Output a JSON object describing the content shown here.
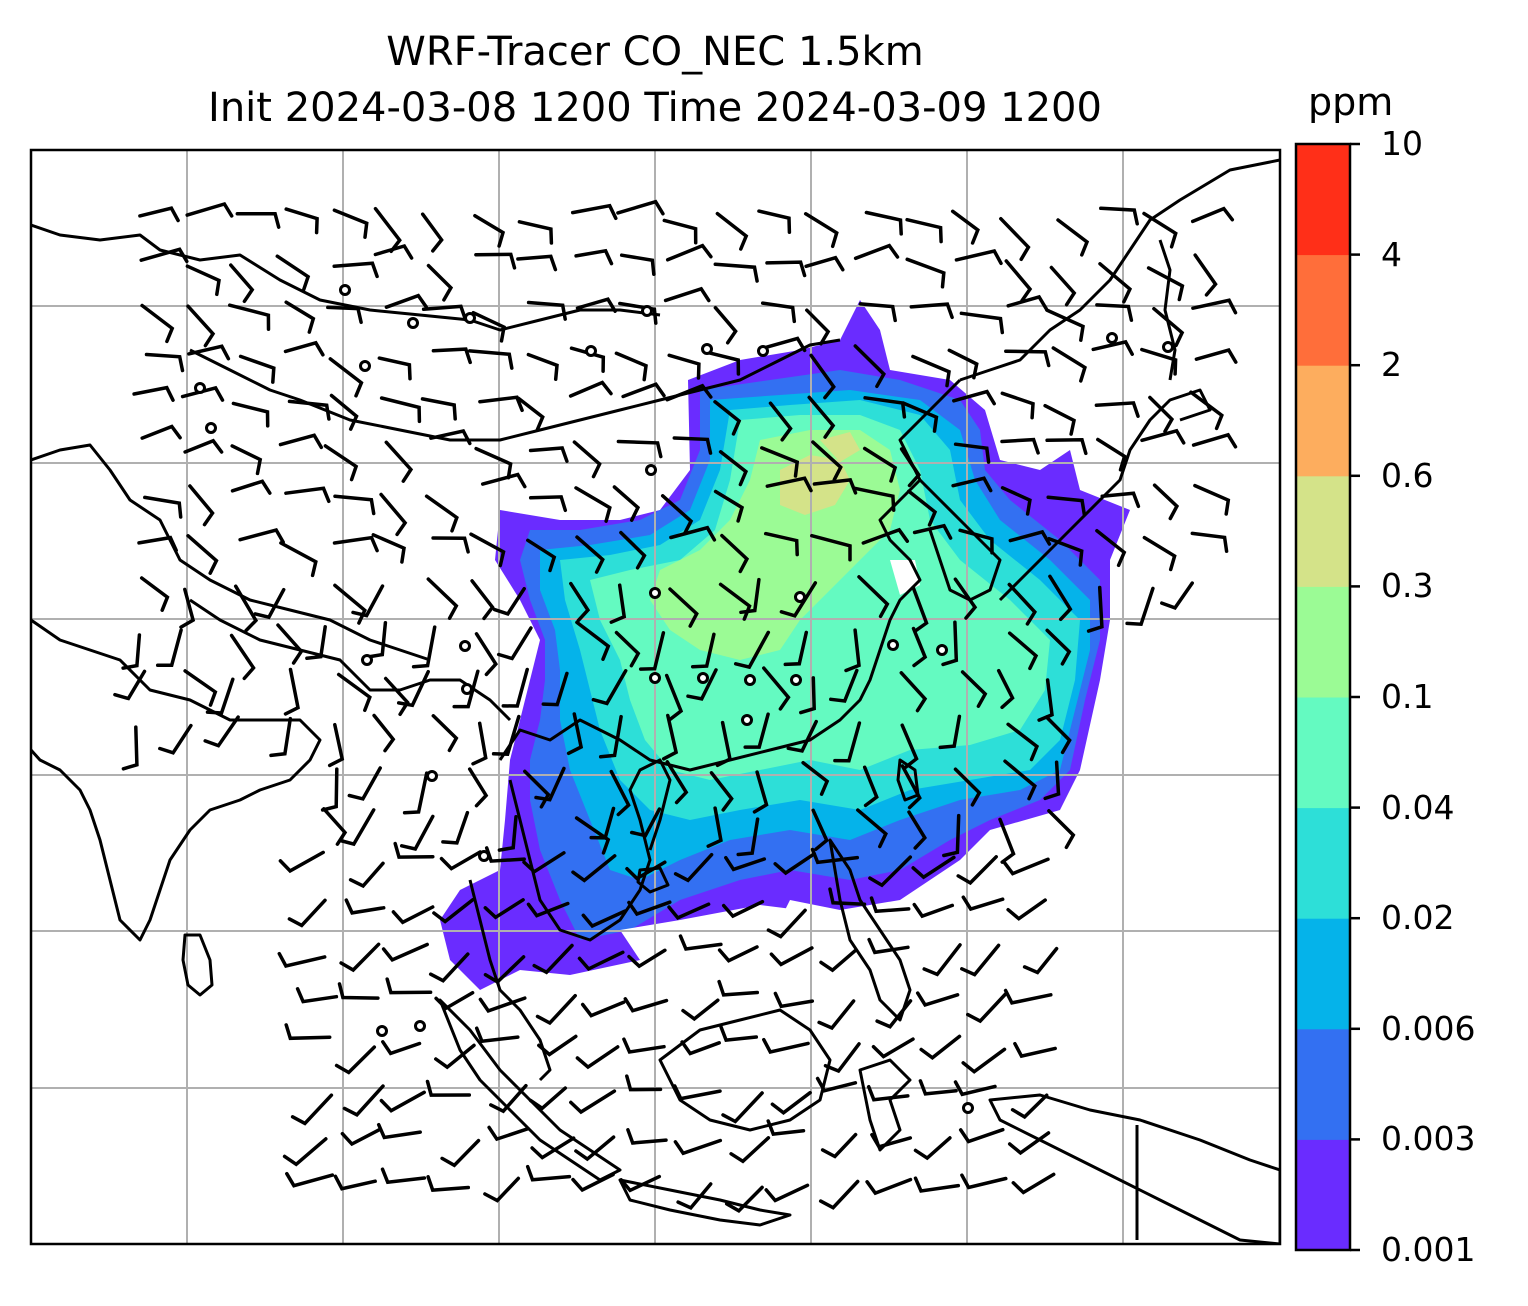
{
  "title": {
    "line1": "WRF-Tracer CO_NEC 1.5km",
    "line2": "Init 2024-03-08 1200 Time 2024-03-09 1200"
  },
  "colorbar": {
    "unit": "ppm",
    "levels": [
      "0.001",
      "0.003",
      "0.006",
      "0.02",
      "0.04",
      "0.1",
      "0.3",
      "0.6",
      "2",
      "4",
      "10"
    ],
    "colors": [
      "#6a2cff",
      "#3370f2",
      "#05b3ea",
      "#2ddfd8",
      "#64fac1",
      "#9bfb95",
      "#d4e389",
      "#fdad5e",
      "#ff6e3a",
      "#ff2f18"
    ]
  },
  "map": {
    "land_color": "#ffffff",
    "coastline_color": "#000000",
    "gridline_color": "#b0b0b0",
    "wind_barb_color": "#000000"
  }
}
